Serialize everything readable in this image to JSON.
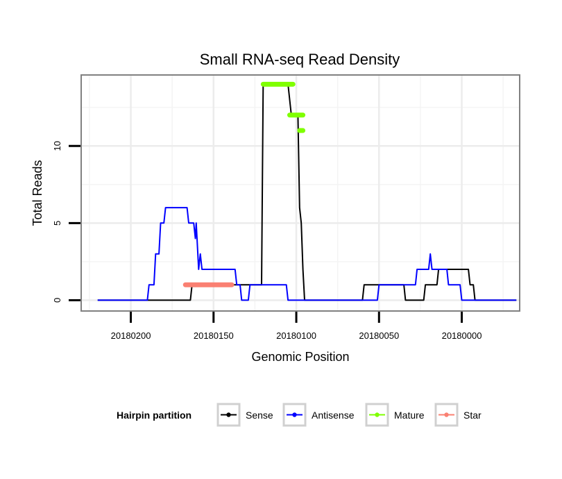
{
  "chart_data": {
    "type": "line",
    "title": "Small RNA-seq Read Density",
    "xlabel": "Genomic Position",
    "ylabel": "Total Reads",
    "x_reversed": true,
    "xlim": [
      20180230,
      20179965
    ],
    "ylim": [
      -0.7,
      14.6
    ],
    "x_ticks": [
      20180200,
      20180150,
      20180100,
      20180050,
      20180000
    ],
    "x_tick_labels": [
      "20180200",
      "20180150",
      "20180100",
      "20180050",
      "20180000"
    ],
    "y_ticks": [
      0,
      5,
      10
    ],
    "y_tick_labels": [
      "0",
      "5",
      "10"
    ],
    "grid": true,
    "legend": {
      "title": "Hairpin partition",
      "position": "bottom",
      "entries": [
        {
          "label": "Sense",
          "color": "#000000"
        },
        {
          "label": "Antisense",
          "color": "#0000ff"
        },
        {
          "label": "Mature",
          "color": "#7fff00"
        },
        {
          "label": "Star",
          "color": "#fa8072"
        }
      ]
    },
    "series": [
      {
        "name": "Sense",
        "color": "#000000",
        "points": [
          [
            20180220,
            0
          ],
          [
            20180164,
            0
          ],
          [
            20180163,
            1
          ],
          [
            20180121,
            1
          ],
          [
            20180120,
            14
          ],
          [
            20180105,
            14
          ],
          [
            20180103,
            12
          ],
          [
            20180099,
            12
          ],
          [
            20180098,
            6
          ],
          [
            20180097,
            5
          ],
          [
            20180096,
            2
          ],
          [
            20180095,
            0
          ],
          [
            20180060,
            0
          ],
          [
            20180059,
            1
          ],
          [
            20180035,
            1
          ],
          [
            20180034,
            0
          ],
          [
            20180023,
            0
          ],
          [
            20180022,
            1
          ],
          [
            20180015,
            1
          ],
          [
            20180014,
            2
          ],
          [
            20179996,
            2
          ],
          [
            20179995,
            1
          ],
          [
            20179993,
            1
          ],
          [
            20179992,
            0
          ],
          [
            20179967,
            0
          ]
        ]
      },
      {
        "name": "Antisense",
        "color": "#0000ff",
        "points": [
          [
            20180220,
            0
          ],
          [
            20180190,
            0
          ],
          [
            20180189,
            1
          ],
          [
            20180186,
            1
          ],
          [
            20180185,
            3
          ],
          [
            20180183,
            3
          ],
          [
            20180182,
            5
          ],
          [
            20180180,
            5
          ],
          [
            20180179,
            6
          ],
          [
            20180166,
            6
          ],
          [
            20180165,
            5
          ],
          [
            20180162,
            5
          ],
          [
            20180161,
            4
          ],
          [
            20180160.5,
            5
          ],
          [
            20180159,
            2
          ],
          [
            20180158,
            3
          ],
          [
            20180157,
            2
          ],
          [
            20180137,
            2
          ],
          [
            20180136,
            1
          ],
          [
            20180134,
            1
          ],
          [
            20180133,
            0
          ],
          [
            20180129,
            0
          ],
          [
            20180128,
            1
          ],
          [
            20180106,
            1
          ],
          [
            20180105,
            0
          ],
          [
            20180051,
            0
          ],
          [
            20180050,
            1
          ],
          [
            20180028,
            1
          ],
          [
            20180027,
            2
          ],
          [
            20180020,
            2
          ],
          [
            20180019,
            3
          ],
          [
            20180018,
            2
          ],
          [
            20180009,
            2
          ],
          [
            20180008,
            1
          ],
          [
            20180001,
            1
          ],
          [
            20180000,
            0
          ],
          [
            20179967,
            0
          ]
        ]
      }
    ],
    "segments": [
      {
        "name": "Mature",
        "color": "#7fff00",
        "x_start": 20180120,
        "x_end": 20180102,
        "y": 14
      },
      {
        "name": "Mature",
        "color": "#7fff00",
        "x_start": 20180104,
        "x_end": 20180096,
        "y": 12
      },
      {
        "name": "Mature",
        "color": "#7fff00",
        "x_start": 20180098,
        "x_end": 20180096,
        "y": 11
      },
      {
        "name": "Star",
        "color": "#fa8072",
        "x_start": 20180167,
        "x_end": 20180139,
        "y": 1
      }
    ]
  }
}
